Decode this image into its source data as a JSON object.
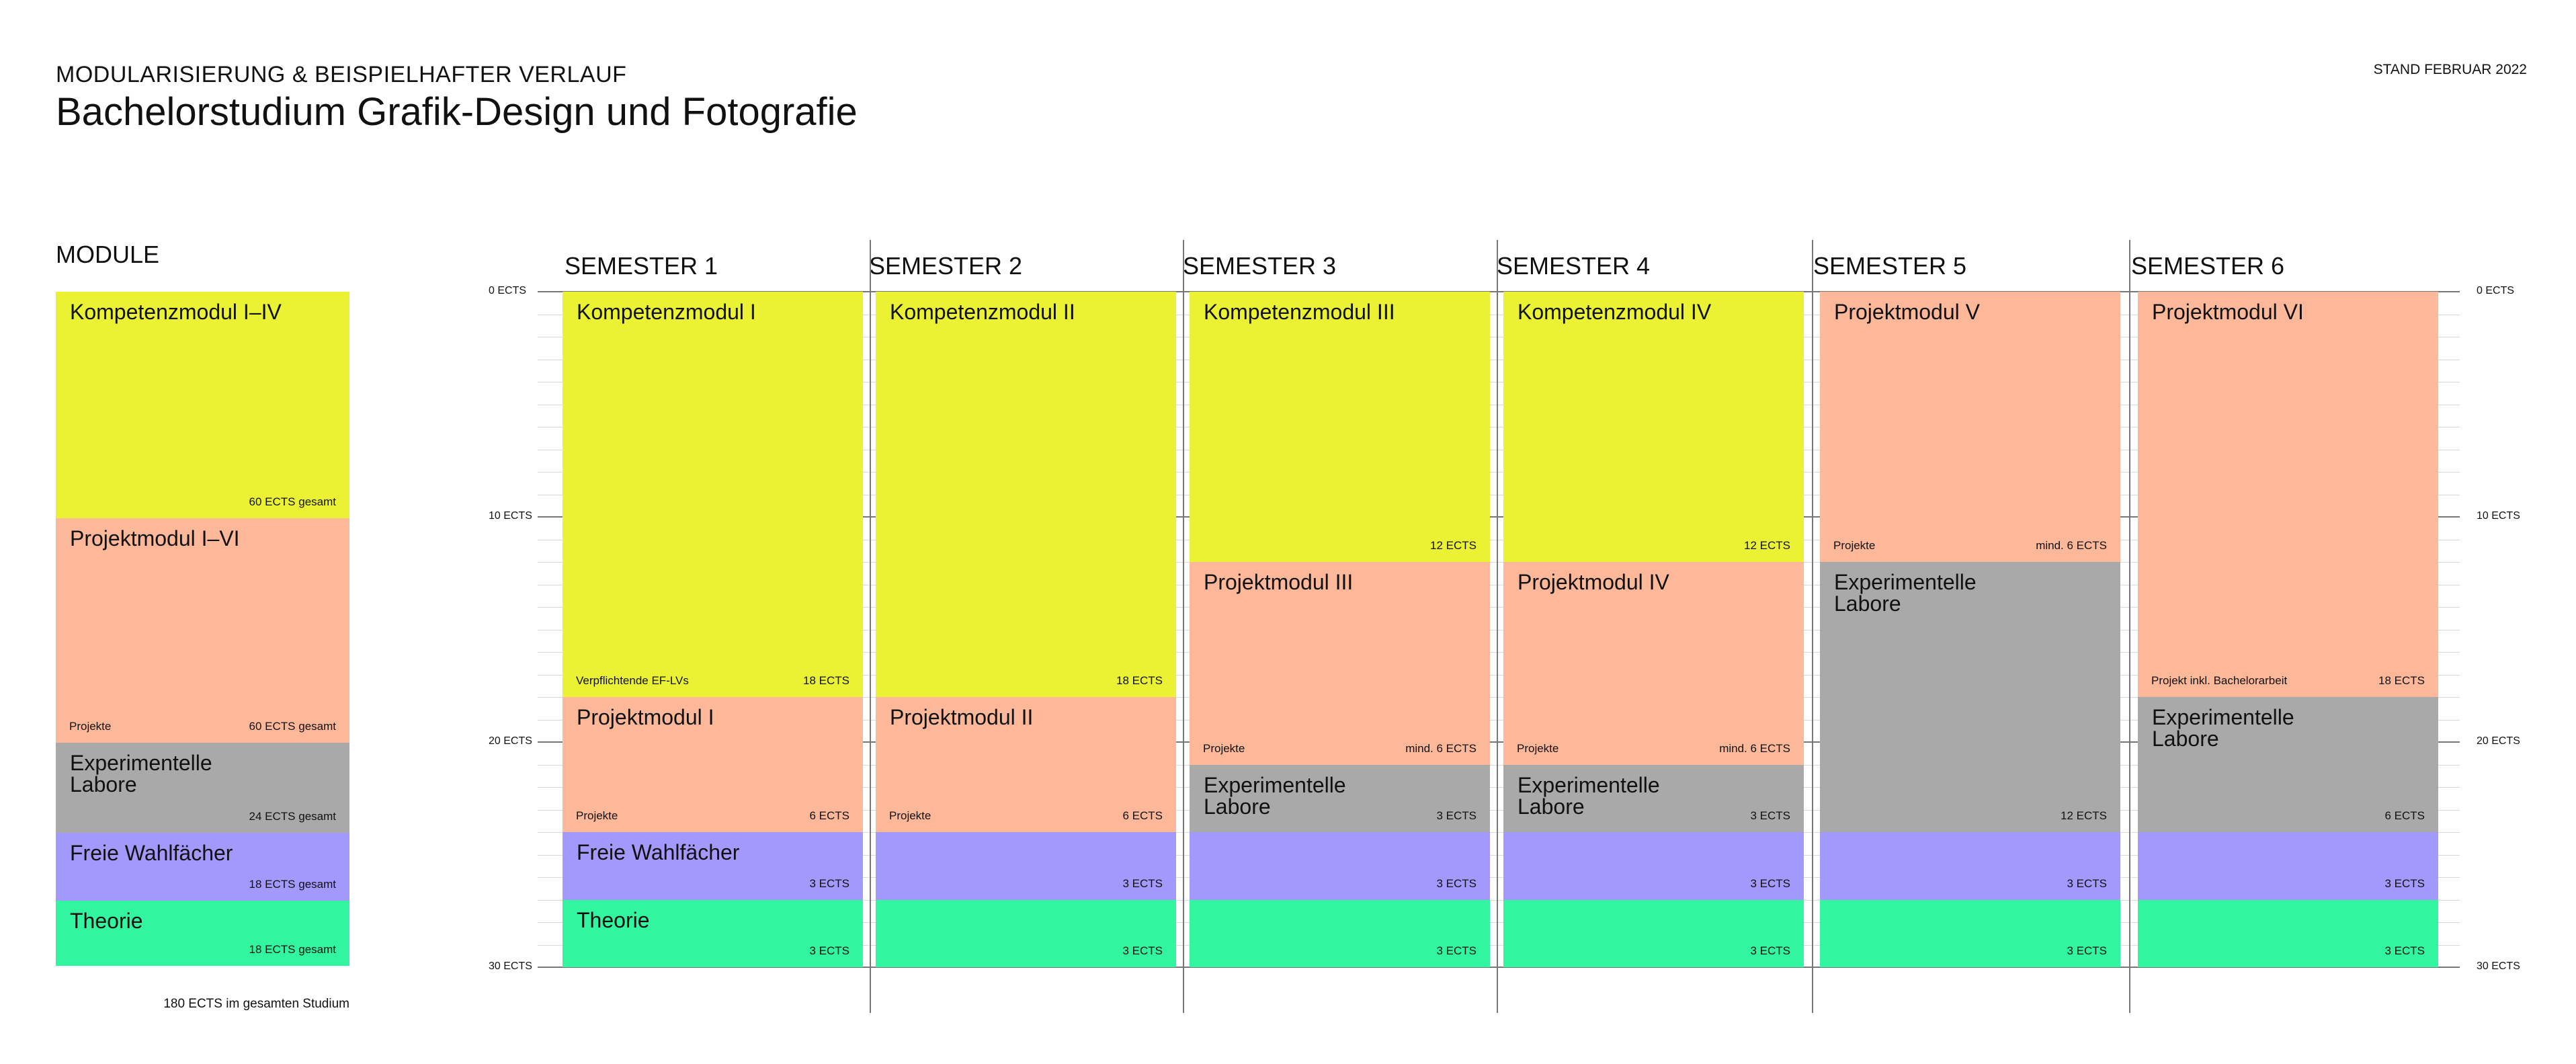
{
  "header": {
    "subtitle": "MODULARISIERUNG & BEISPIELHAFTER VERLAUF",
    "title": "Bachelorstudium Grafik-Design und Fotografie",
    "stand": "STAND FEBRUAR 2022"
  },
  "colors": {
    "kompetenz": "#eaf233",
    "projekt": "#fdb89a",
    "labor": "#a9a9a9",
    "wahl": "#a398fc",
    "theorie": "#32f59f"
  },
  "legend": {
    "heading": "MODULE",
    "total": "180 ECTS im gesamten Studium",
    "items": [
      {
        "label": "Kompetenzmodul I–IV",
        "note": "",
        "ects": "60 ECTS gesamt",
        "ects_value": 60,
        "color": "kompetenz"
      },
      {
        "label": "Projektmodul I–VI",
        "note": "Projekte",
        "ects": "60 ECTS gesamt",
        "ects_value": 60,
        "color": "projekt"
      },
      {
        "label": "Experimentelle\nLabore",
        "note": "",
        "ects": "24 ECTS gesamt",
        "ects_value": 24,
        "color": "labor"
      },
      {
        "label": "Freie Wahlfächer",
        "note": "",
        "ects": "18 ECTS gesamt",
        "ects_value": 18,
        "color": "wahl"
      },
      {
        "label": "Theorie",
        "note": "",
        "ects": "18 ECTS gesamt",
        "ects_value": 18,
        "color": "theorie"
      }
    ]
  },
  "axis": {
    "ticks": [
      {
        "label": "0 ECTS",
        "value": 0
      },
      {
        "label": "10 ECTS",
        "value": 10
      },
      {
        "label": "20 ECTS",
        "value": 20
      },
      {
        "label": "30 ECTS",
        "value": 30
      }
    ]
  },
  "semesters": [
    {
      "label": "SEMESTER 1",
      "blocks": [
        {
          "label": "Kompetenzmodul I",
          "note": "Verpflichtende EF-LVs",
          "ects": "18 ECTS",
          "value": 18,
          "color": "kompetenz"
        },
        {
          "label": "Projektmodul I",
          "note": "Projekte",
          "ects": "6 ECTS",
          "value": 6,
          "color": "projekt"
        },
        {
          "label": "Freie Wahlfächer",
          "note": "",
          "ects": "3 ECTS",
          "value": 3,
          "color": "wahl"
        },
        {
          "label": "Theorie",
          "note": "",
          "ects": "3 ECTS",
          "value": 3,
          "color": "theorie"
        }
      ]
    },
    {
      "label": "SEMESTER 2",
      "blocks": [
        {
          "label": "Kompetenzmodul II",
          "note": "",
          "ects": "18 ECTS",
          "value": 18,
          "color": "kompetenz"
        },
        {
          "label": "Projektmodul II",
          "note": "Projekte",
          "ects": "6 ECTS",
          "value": 6,
          "color": "projekt"
        },
        {
          "label": "",
          "note": "",
          "ects": "3 ECTS",
          "value": 3,
          "color": "wahl"
        },
        {
          "label": "",
          "note": "",
          "ects": "3 ECTS",
          "value": 3,
          "color": "theorie"
        }
      ]
    },
    {
      "label": "SEMESTER 3",
      "blocks": [
        {
          "label": "Kompetenzmodul III",
          "note": "",
          "ects": "12 ECTS",
          "value": 12,
          "color": "kompetenz"
        },
        {
          "label": "Projektmodul III",
          "note": "Projekte",
          "ects": "mind. 6 ECTS",
          "value": 9,
          "color": "projekt"
        },
        {
          "label": "Experimentelle\nLabore",
          "note": "",
          "ects": "3 ECTS",
          "value": 3,
          "color": "labor"
        },
        {
          "label": "",
          "note": "",
          "ects": "3 ECTS",
          "value": 3,
          "color": "wahl"
        },
        {
          "label": "",
          "note": "",
          "ects": "3 ECTS",
          "value": 3,
          "color": "theorie"
        }
      ]
    },
    {
      "label": "SEMESTER 4",
      "blocks": [
        {
          "label": "Kompetenzmodul IV",
          "note": "",
          "ects": "12 ECTS",
          "value": 12,
          "color": "kompetenz"
        },
        {
          "label": "Projektmodul IV",
          "note": "Projekte",
          "ects": "mind. 6 ECTS",
          "value": 9,
          "color": "projekt"
        },
        {
          "label": "Experimentelle\nLabore",
          "note": "",
          "ects": "3 ECTS",
          "value": 3,
          "color": "labor"
        },
        {
          "label": "",
          "note": "",
          "ects": "3 ECTS",
          "value": 3,
          "color": "wahl"
        },
        {
          "label": "",
          "note": "",
          "ects": "3 ECTS",
          "value": 3,
          "color": "theorie"
        }
      ]
    },
    {
      "label": "SEMESTER 5",
      "blocks": [
        {
          "label": "Projektmodul V",
          "note": "Projekte",
          "ects": "mind. 6 ECTS",
          "value": 12,
          "color": "projekt"
        },
        {
          "label": "Experimentelle\nLabore",
          "note": "",
          "ects": "12 ECTS",
          "value": 12,
          "color": "labor"
        },
        {
          "label": "",
          "note": "",
          "ects": "3 ECTS",
          "value": 3,
          "color": "wahl"
        },
        {
          "label": "",
          "note": "",
          "ects": "3 ECTS",
          "value": 3,
          "color": "theorie"
        }
      ]
    },
    {
      "label": "SEMESTER 6",
      "blocks": [
        {
          "label": "Projektmodul VI",
          "note": "Projekt inkl. Bachelorarbeit",
          "ects": "18 ECTS",
          "value": 18,
          "color": "projekt"
        },
        {
          "label": "Experimentelle\nLabore",
          "note": "",
          "ects": "6 ECTS",
          "value": 6,
          "color": "labor"
        },
        {
          "label": "",
          "note": "",
          "ects": "3 ECTS",
          "value": 3,
          "color": "wahl"
        },
        {
          "label": "",
          "note": "",
          "ects": "3 ECTS",
          "value": 3,
          "color": "theorie"
        }
      ]
    }
  ]
}
